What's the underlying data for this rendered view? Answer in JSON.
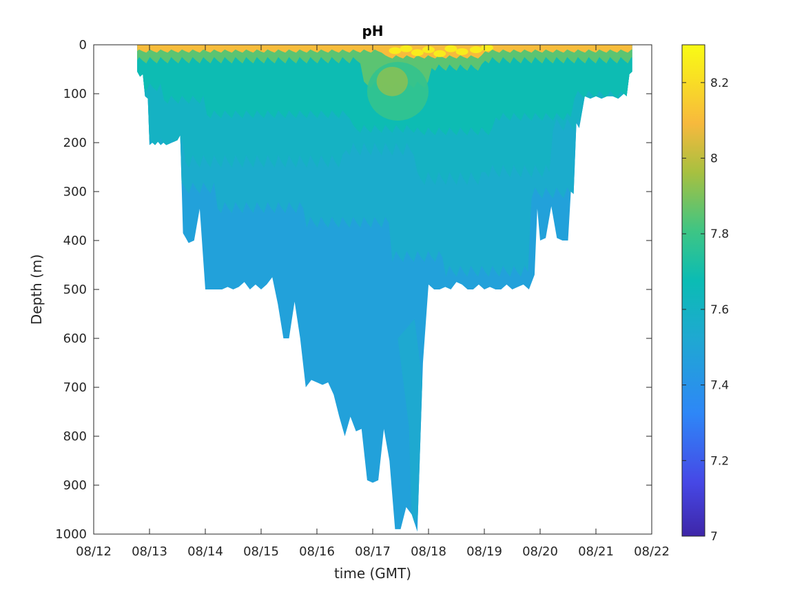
{
  "chart_data": {
    "type": "heatmap",
    "title": "pH",
    "xlabel": "time (GMT)",
    "ylabel": "Depth (m)",
    "x_ticks": [
      "08/12",
      "08/13",
      "08/14",
      "08/15",
      "08/16",
      "08/17",
      "08/18",
      "08/19",
      "08/20",
      "08/21",
      "08/22"
    ],
    "xlim": [
      "08/12",
      "08/22"
    ],
    "y_ticks": [
      0,
      100,
      200,
      300,
      400,
      500,
      600,
      700,
      800,
      900,
      1000
    ],
    "ylim": [
      0,
      1000
    ],
    "y_reversed": true,
    "grid": false,
    "colorbar": {
      "ticks": [
        7.2,
        7.4,
        7.6,
        7.8,
        8,
        8.2
      ],
      "edge_labels": [
        7
      ],
      "range": [
        7,
        8.3
      ],
      "colormap": "parula",
      "colors": [
        "#3e26a8",
        "#4648e6",
        "#2e87f7",
        "#1fa8d2",
        "#0bbcb4",
        "#3dc585",
        "#a7c040",
        "#f7b93d",
        "#f9df24",
        "#f9fb15"
      ]
    },
    "profile_depths": {
      "time_day": [
        12.78,
        12.83,
        12.88,
        12.92,
        12.97,
        13.0,
        13.05,
        13.1,
        13.15,
        13.2,
        13.25,
        13.3,
        13.4,
        13.5,
        13.55,
        13.6,
        13.65,
        13.7,
        13.8,
        13.9,
        14.0,
        14.1,
        14.2,
        14.3,
        14.4,
        14.5,
        14.6,
        14.7,
        14.8,
        14.9,
        15.0,
        15.1,
        15.2,
        15.3,
        15.4,
        15.5,
        15.6,
        15.7,
        15.8,
        15.9,
        16.0,
        16.1,
        16.2,
        16.3,
        16.4,
        16.5,
        16.6,
        16.7,
        16.8,
        16.9,
        17.0,
        17.1,
        17.2,
        17.3,
        17.4,
        17.5,
        17.6,
        17.7,
        17.8,
        17.9,
        18.0,
        18.1,
        18.2,
        18.3,
        18.4,
        18.5,
        18.6,
        18.7,
        18.8,
        18.9,
        19.0,
        19.1,
        19.2,
        19.3,
        19.4,
        19.5,
        19.6,
        19.7,
        19.8,
        19.9,
        19.95,
        20.0,
        20.1,
        20.2,
        20.3,
        20.4,
        20.5,
        20.55,
        20.6,
        20.65,
        20.7,
        20.8,
        20.9,
        21.0,
        21.1,
        21.2,
        21.3,
        21.4,
        21.5,
        21.55,
        21.6,
        21.65
      ],
      "max_depth_m": [
        55,
        65,
        60,
        105,
        110,
        205,
        200,
        205,
        198,
        205,
        200,
        205,
        200,
        195,
        185,
        385,
        395,
        405,
        400,
        335,
        500,
        500,
        500,
        500,
        495,
        500,
        495,
        485,
        500,
        490,
        500,
        490,
        475,
        530,
        600,
        600,
        525,
        600,
        700,
        685,
        690,
        695,
        690,
        715,
        760,
        800,
        760,
        790,
        785,
        890,
        895,
        890,
        785,
        850,
        990,
        990,
        945,
        960,
        995,
        650,
        490,
        500,
        500,
        495,
        500,
        485,
        490,
        500,
        500,
        490,
        500,
        495,
        500,
        500,
        490,
        500,
        495,
        490,
        500,
        470,
        335,
        400,
        395,
        330,
        395,
        400,
        400,
        300,
        305,
        160,
        170,
        105,
        110,
        105,
        110,
        105,
        105,
        110,
        100,
        105,
        60,
        55
      ]
    },
    "layers": [
      {
        "value": 7.48,
        "depth_m": "below ~250-350 m"
      },
      {
        "value": 7.55,
        "depth_m": "~150-300 m"
      },
      {
        "value": 7.6,
        "depth_m": "~100-200 m"
      },
      {
        "value": 7.68,
        "depth_m": "~40-150 m"
      },
      {
        "value": 7.85,
        "depth_m": "~10-40 m"
      },
      {
        "value": 8.1,
        "depth_m": "0-15 m"
      },
      {
        "value": 8.25,
        "depth_m": "near surface, 08/17-08/19"
      }
    ]
  }
}
